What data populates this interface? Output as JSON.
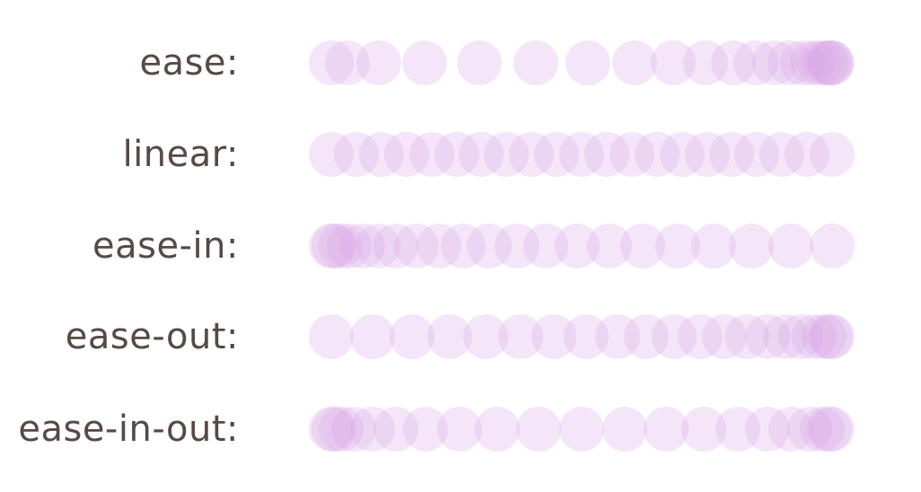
{
  "diagram": {
    "dot_color": "#d9a6e6",
    "dot_opacity": 0.28,
    "label_color": "#554a45",
    "rows": [
      {
        "label": "ease:",
        "timing": [
          0.25,
          0.1,
          0.25,
          1.0
        ]
      },
      {
        "label": "linear:",
        "timing": [
          0.0,
          0.0,
          1.0,
          1.0
        ]
      },
      {
        "label": "ease-in:",
        "timing": [
          0.42,
          0.0,
          1.0,
          1.0
        ]
      },
      {
        "label": "ease-out:",
        "timing": [
          0.0,
          0.0,
          0.58,
          1.0
        ]
      },
      {
        "label": "ease-in-out:",
        "timing": [
          0.42,
          0.0,
          0.58,
          1.0
        ]
      }
    ],
    "samples": 21
  }
}
